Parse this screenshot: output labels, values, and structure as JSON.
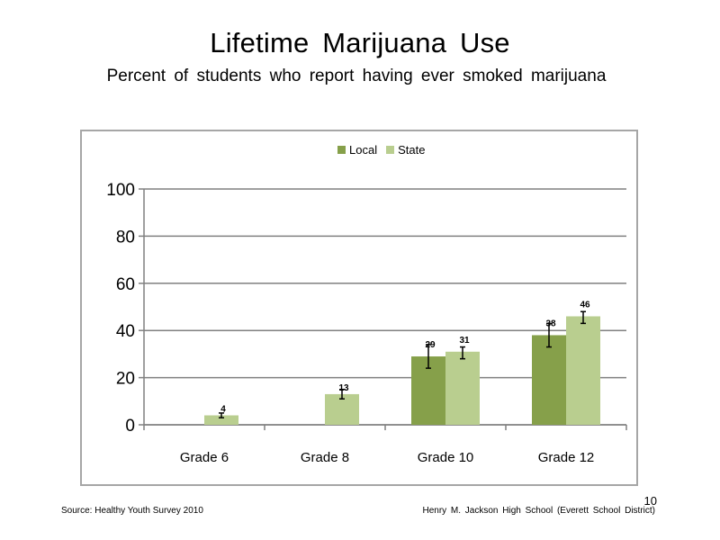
{
  "slide": {
    "title": "Lifetime  Marijuana  Use",
    "subtitle": "Percent  of students  who report having  ever smoked  marijuana",
    "source": "Source: Healthy  Youth Survey 2010",
    "school": "Henry M.  Jackson High  School (Everett School District)",
    "page_number": "10"
  },
  "colors": {
    "local": "#86a04a",
    "state": "#b9ce8f",
    "grid": "#808080",
    "frame": "#a6a6a6"
  },
  "chart_data": {
    "type": "bar",
    "title": "",
    "xlabel": "",
    "ylabel": "",
    "ylim": [
      0,
      100
    ],
    "yticks": [
      0,
      20,
      40,
      60,
      80,
      100
    ],
    "categories": [
      "Grade 6",
      "Grade 8",
      "Grade 10",
      "Grade 12"
    ],
    "grid": true,
    "legend_position": "top-center",
    "series": [
      {
        "name": "Local",
        "values": [
          null,
          null,
          29,
          38
        ],
        "labels": [
          "",
          "",
          "29",
          "38"
        ],
        "err_low": [
          null,
          null,
          24,
          33
        ],
        "err_high": [
          null,
          null,
          34,
          43
        ]
      },
      {
        "name": "State",
        "values": [
          4,
          13,
          31,
          46
        ],
        "labels": [
          "4",
          "13",
          "31",
          "46"
        ],
        "err_low": [
          3,
          11,
          28,
          43
        ],
        "err_high": [
          5,
          15,
          33,
          48
        ]
      }
    ]
  }
}
